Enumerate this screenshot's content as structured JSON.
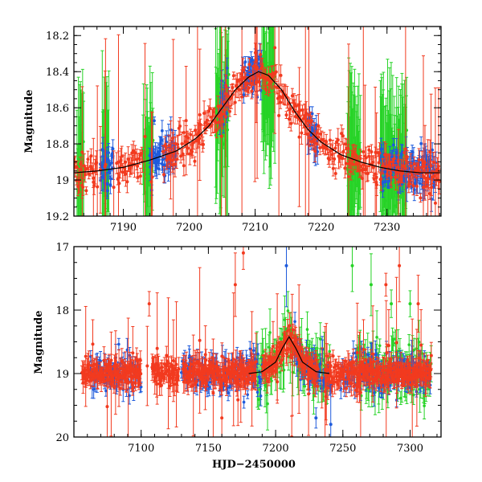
{
  "chart_data": [
    {
      "type": "scatter",
      "panel": "top",
      "title": "",
      "xlabel": "",
      "ylabel": "Magnitude",
      "xlim": [
        7182.5,
        7238.2
      ],
      "ylim": [
        19.2,
        18.15
      ],
      "y_inverted": true,
      "x_ticks": [
        7190,
        7200,
        7210,
        7220,
        7230
      ],
      "x_tick_labels": [
        "7190",
        "7200",
        "7210",
        "7220",
        "7230"
      ],
      "y_ticks": [
        18.2,
        18.4,
        18.6,
        18.8,
        19,
        19.2
      ],
      "y_tick_labels": [
        "18.2",
        "18.4",
        "18.6",
        "18.8",
        "19",
        "19.2"
      ],
      "series_colors": [
        "#27d327",
        "#f23a1f",
        "#1f5bdc"
      ],
      "series": [
        {
          "name": "green",
          "color": "#27d327"
        },
        {
          "name": "red",
          "color": "#f23a1f"
        },
        {
          "name": "blue",
          "color": "#1f5bdc"
        }
      ],
      "model_curve": {
        "name": "model",
        "color": "#000000",
        "x": [
          7182.5,
          7186,
          7190,
          7194,
          7198,
          7201,
          7203,
          7205,
          7207,
          7209,
          7210.5,
          7212,
          7214,
          7216,
          7218,
          7220,
          7223,
          7226,
          7229,
          7232,
          7235,
          7238.2
        ],
        "y": [
          18.96,
          18.95,
          18.93,
          18.89,
          18.84,
          18.77,
          18.7,
          18.6,
          18.5,
          18.43,
          18.4,
          18.42,
          18.5,
          18.62,
          18.72,
          18.79,
          18.86,
          18.9,
          18.93,
          18.95,
          18.96,
          18.96
        ]
      },
      "green_clusters": [
        [
          7183.0,
          7184.0
        ],
        [
          7186.8,
          7187.8
        ],
        [
          7193.0,
          7194.5
        ],
        [
          7204.0,
          7206.0
        ],
        [
          7211.0,
          7213.0
        ],
        [
          7224.0,
          7226.0
        ],
        [
          7229.0,
          7233.0
        ]
      ],
      "blue_clusters": [
        [
          7186.5,
          7188.5
        ],
        [
          7194.0,
          7198.0
        ],
        [
          7204.5,
          7206.0
        ],
        [
          7208.0,
          7211.0
        ],
        [
          7218.0,
          7219.5
        ],
        [
          7229.0,
          7237.5
        ]
      ],
      "red_ranges": [
        [
          7182.6,
          7186.0
        ],
        [
          7189.0,
          7193.0
        ],
        [
          7196.0,
          7238.0
        ]
      ]
    },
    {
      "type": "scatter",
      "panel": "bottom",
      "title": "",
      "xlabel": "HJD−2450000",
      "ylabel": "Magnitude",
      "xlim": [
        7050,
        7323
      ],
      "ylim": [
        20,
        17
      ],
      "y_inverted": true,
      "x_ticks": [
        7100,
        7150,
        7200,
        7250,
        7300
      ],
      "x_tick_labels": [
        "7100",
        "7150",
        "7200",
        "7250",
        "7300"
      ],
      "y_ticks": [
        17,
        18,
        19,
        20
      ],
      "y_tick_labels": [
        "17",
        "18",
        "19",
        "20"
      ],
      "series_colors": [
        "#27d327",
        "#f23a1f",
        "#1f5bdc"
      ],
      "series": [
        {
          "name": "green",
          "color": "#27d327"
        },
        {
          "name": "red",
          "color": "#f23a1f"
        },
        {
          "name": "blue",
          "color": "#1f5bdc"
        }
      ],
      "model_curve": {
        "name": "model",
        "color": "#000000",
        "x": [
          7180,
          7190,
          7200,
          7205,
          7210,
          7215,
          7220,
          7230,
          7240
        ],
        "y": [
          19.0,
          18.97,
          18.82,
          18.6,
          18.42,
          18.6,
          18.82,
          18.97,
          19.0
        ]
      },
      "red_ranges": [
        [
          7056,
          7100
        ],
        [
          7108,
          7128
        ],
        [
          7131,
          7185
        ],
        [
          7190,
          7232
        ],
        [
          7237,
          7316
        ]
      ],
      "blue_ranges": [
        [
          7062,
          7100
        ],
        [
          7130,
          7185
        ],
        [
          7183,
          7190
        ],
        [
          7214,
          7240
        ],
        [
          7248,
          7315
        ]
      ],
      "green_ranges": [
        [
          7186,
          7240
        ],
        [
          7260,
          7316
        ]
      ],
      "outliers": [
        {
          "series": "red",
          "x": 7106,
          "y": 17.9
        },
        {
          "series": "red",
          "x": 7170,
          "y": 17.6
        },
        {
          "series": "red",
          "x": 7176,
          "y": 17.1
        },
        {
          "series": "red",
          "x": 7160,
          "y": 19.7
        },
        {
          "series": "blue",
          "x": 7208,
          "y": 17.3
        },
        {
          "series": "blue",
          "x": 7230,
          "y": 19.7
        },
        {
          "series": "red",
          "x": 7282,
          "y": 17.6
        },
        {
          "series": "red",
          "x": 7292,
          "y": 17.3
        },
        {
          "series": "green",
          "x": 7257,
          "y": 17.3
        },
        {
          "series": "green",
          "x": 7271,
          "y": 17.6
        },
        {
          "series": "green",
          "x": 7286,
          "y": 17.9
        },
        {
          "series": "green",
          "x": 7300,
          "y": 17.9
        },
        {
          "series": "red",
          "x": 7306,
          "y": 17.9
        },
        {
          "series": "red",
          "x": 7212,
          "y": 20.0
        },
        {
          "series": "blue",
          "x": 7241,
          "y": 19.8
        }
      ]
    }
  ]
}
